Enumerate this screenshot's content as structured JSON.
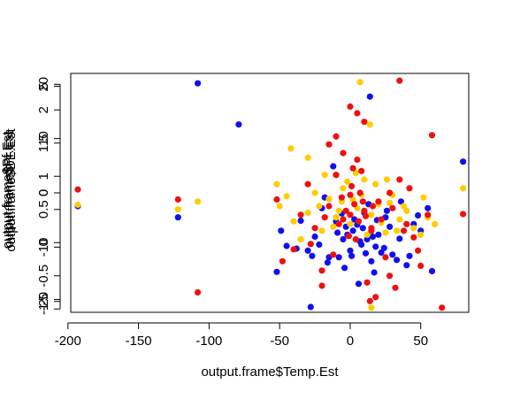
{
  "chart_data": {
    "type": "scatter",
    "title": "",
    "xlabel": "output.frame$Temp.Est",
    "xlim": [
      -198,
      84
    ],
    "x_ticks": [
      -200,
      -150,
      -100,
      -50,
      0,
      50
    ],
    "y_axes": [
      {
        "ylabel": "output.frame$DE.Est",
        "ylim": [
          -1.05,
          2.55
        ],
        "ticks": [
          -1,
          -0.5,
          0,
          0.5,
          1,
          1.5,
          2
        ],
        "tick_labels": [
          "-1",
          "-0.5",
          "0",
          "0.5",
          "1",
          "1.5",
          "2"
        ]
      },
      {
        "ylabel": "output.frame$Pf.Est",
        "ylim": [
          -22,
          22
        ],
        "ticks": [
          -20,
          -10,
          0,
          10,
          20
        ],
        "tick_labels": [
          "-20",
          "-10",
          "0",
          "10",
          "20"
        ]
      },
      {
        "ylabel": "output.frame$Pr.Est",
        "ylim": [
          -5.6,
          5.6
        ],
        "ticks": [
          -5,
          0,
          5
        ],
        "tick_labels": [
          "-5",
          "0",
          "5"
        ]
      }
    ],
    "grid": false,
    "legend": "none",
    "series": [
      {
        "color": "#1010ee",
        "points": [
          [
            -193,
            0.55
          ],
          [
            -122,
            0.38
          ],
          [
            -108,
            2.4
          ],
          [
            -79,
            1.78
          ],
          [
            80,
            1.22
          ],
          [
            -28,
            -0.97
          ],
          [
            -52,
            -0.44
          ],
          [
            -49,
            0.18
          ],
          [
            -38,
            -0.09
          ],
          [
            -20,
            0.52
          ],
          [
            -15,
            -0.22
          ],
          [
            -10,
            0.32
          ],
          [
            -5,
            0.05
          ],
          [
            0,
            -0.12
          ],
          [
            5,
            0.27
          ],
          [
            10,
            0.45
          ],
          [
            15,
            -0.28
          ],
          [
            20,
            0.12
          ],
          [
            25,
            0.38
          ],
          [
            30,
            -0.18
          ],
          [
            35,
            0.06
          ],
          [
            40,
            -0.34
          ],
          [
            45,
            0.28
          ],
          [
            50,
            0.18
          ],
          [
            55,
            0.52
          ],
          [
            58,
            -0.43
          ],
          [
            -45,
            -0.05
          ],
          [
            -30,
            -0.12
          ],
          [
            -25,
            0.09
          ],
          [
            -12,
            1.15
          ],
          [
            -8,
            -0.22
          ],
          [
            2,
            0.18
          ],
          [
            8,
            -0.03
          ],
          [
            12,
            0.05
          ],
          [
            18,
            -0.06
          ],
          [
            22,
            -0.15
          ],
          [
            28,
            0.24
          ],
          [
            14,
            2.2
          ],
          [
            -4,
            -0.38
          ],
          [
            6,
            -0.62
          ],
          [
            -18,
            0.68
          ],
          [
            3,
            0.35
          ],
          [
            -2,
            0.12
          ],
          [
            9,
            0.22
          ],
          [
            16,
            0.09
          ],
          [
            -22,
            -0.03
          ],
          [
            -6,
            0.44
          ],
          [
            11,
            -0.16
          ],
          [
            26,
            0.48
          ],
          [
            36,
            0.62
          ],
          [
            42,
            -0.2
          ],
          [
            -35,
            0.33
          ],
          [
            -16,
            -0.3
          ],
          [
            1,
            -0.2
          ],
          [
            19,
            0.34
          ],
          [
            24,
            -0.08
          ],
          [
            -9,
            0.15
          ],
          [
            7,
            0.02
          ],
          [
            13,
            0.58
          ],
          [
            33,
            -0.26
          ],
          [
            48,
            0.41
          ],
          [
            -27,
            -0.2
          ],
          [
            -3,
            0.24
          ],
          [
            17,
            -0.45
          ]
        ]
      },
      {
        "color": "#ffcc00",
        "points": [
          [
            -193,
            0.57
          ],
          [
            -122,
            0.5
          ],
          [
            -108,
            0.62
          ],
          [
            -52,
            0.88
          ],
          [
            -50,
            0.55
          ],
          [
            -40,
            0.32
          ],
          [
            -35,
            0.05
          ],
          [
            -30,
            0.45
          ],
          [
            -25,
            0.75
          ],
          [
            -20,
            0.18
          ],
          [
            -15,
            0.66
          ],
          [
            -10,
            0.38
          ],
          [
            -5,
            0.82
          ],
          [
            0,
            0.28
          ],
          [
            5,
            0.52
          ],
          [
            10,
            0.95
          ],
          [
            15,
            0.42
          ],
          [
            20,
            0.58
          ],
          [
            25,
            0.15
          ],
          [
            30,
            0.72
          ],
          [
            35,
            0.35
          ],
          [
            40,
            0.48
          ],
          [
            45,
            0.22
          ],
          [
            50,
            0.12
          ],
          [
            55,
            0.38
          ],
          [
            60,
            0.28
          ],
          [
            80,
            0.82
          ],
          [
            15,
            -0.98
          ],
          [
            14,
            1.78
          ],
          [
            -30,
            1.28
          ],
          [
            -42,
            1.42
          ],
          [
            -18,
            1.02
          ],
          [
            -8,
            0.48
          ],
          [
            2,
            0.65
          ],
          [
            8,
            0.72
          ],
          [
            12,
            0.12
          ],
          [
            18,
            0.88
          ],
          [
            22,
            0.3
          ],
          [
            28,
            0.6
          ],
          [
            38,
            0.55
          ],
          [
            -2,
            0.92
          ],
          [
            4,
            1.05
          ],
          [
            -12,
            0.24
          ],
          [
            7,
            2.42
          ],
          [
            -45,
            0.7
          ],
          [
            26,
            0.95
          ],
          [
            52,
            0.68
          ],
          [
            33,
            0.18
          ],
          [
            -22,
            0.55
          ],
          [
            -6,
            0.62
          ]
        ]
      },
      {
        "color": "#ee1010",
        "points": [
          [
            -193,
            0.8
          ],
          [
            -122,
            0.65
          ],
          [
            -108,
            -0.75
          ],
          [
            -52,
            0.65
          ],
          [
            -48,
            -0.28
          ],
          [
            -40,
            -0.1
          ],
          [
            -35,
            0.42
          ],
          [
            -30,
            0.88
          ],
          [
            -25,
            0.22
          ],
          [
            -20,
            -0.42
          ],
          [
            -15,
            0.55
          ],
          [
            -10,
            1.02
          ],
          [
            -5,
            0.35
          ],
          [
            0,
            0.72
          ],
          [
            5,
            1.25
          ],
          [
            10,
            0.48
          ],
          [
            15,
            0.18
          ],
          [
            20,
            0.62
          ],
          [
            25,
            -0.22
          ],
          [
            30,
            0.52
          ],
          [
            35,
            0.95
          ],
          [
            40,
            0.28
          ],
          [
            45,
            0.08
          ],
          [
            50,
            -0.35
          ],
          [
            55,
            0.42
          ],
          [
            58,
            1.62
          ],
          [
            80,
            0.43
          ],
          [
            65,
            -0.98
          ],
          [
            -10,
            1.6
          ],
          [
            0,
            2.05
          ],
          [
            5,
            1.95
          ],
          [
            10,
            1.82
          ],
          [
            -15,
            1.48
          ],
          [
            -5,
            1.35
          ],
          [
            2,
            1.12
          ],
          [
            8,
            1.08
          ],
          [
            12,
            -0.6
          ],
          [
            18,
            -0.82
          ],
          [
            22,
            0.35
          ],
          [
            28,
            -0.5
          ],
          [
            32,
            -0.68
          ],
          [
            38,
            0.18
          ],
          [
            42,
            0.82
          ],
          [
            48,
            -0.12
          ],
          [
            15,
            0.22
          ],
          [
            0,
            0.42
          ],
          [
            3,
            0.58
          ],
          [
            -3,
            0.48
          ],
          [
            6,
            0.32
          ],
          [
            9,
            0.62
          ],
          [
            -8,
            0.28
          ],
          [
            -12,
            -0.18
          ],
          [
            14,
            -0.88
          ],
          [
            -20,
            -0.65
          ],
          [
            -28,
            -0.02
          ],
          [
            28,
            0.75
          ],
          [
            35,
            2.44
          ],
          [
            -1,
            0.1
          ],
          [
            1,
            0.85
          ],
          [
            4,
            0.05
          ],
          [
            7,
            0.75
          ],
          [
            11,
            0.4
          ],
          [
            -6,
            0.68
          ],
          [
            16,
            0.55
          ],
          [
            -18,
            0.38
          ]
        ]
      }
    ]
  }
}
